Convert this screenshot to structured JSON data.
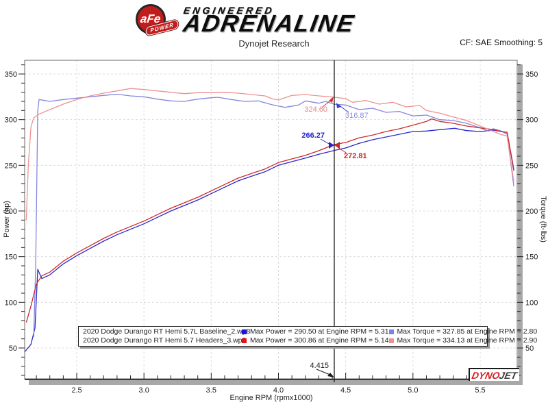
{
  "header": {
    "badge": {
      "afe": "aFe",
      "power": "POWER"
    },
    "engineered": "ENGINEERED",
    "adrenaline": "ADRENALINE",
    "subtitle": "Dynojet Research",
    "cf": "CF: SAE Smoothing: 5"
  },
  "watermark": {
    "dyno": "DYNO",
    "jet": "JET"
  },
  "chart_data": {
    "type": "line",
    "title": "Dynojet Research",
    "x_axis": {
      "label": "Engine RPM (rpmx1000)",
      "range": [
        2.11,
        5.78
      ],
      "major_ticks": [
        2.5,
        3.0,
        3.5,
        4.0,
        4.5,
        5.0,
        5.5
      ],
      "minor_step": 0.1
    },
    "y_left": {
      "label": "Power (hp)",
      "range": [
        16,
        365
      ],
      "major_ticks": [
        50,
        100,
        150,
        200,
        250,
        300,
        350
      ],
      "minor_step": 10
    },
    "y_right": {
      "label": "Torque (ft-lbs)",
      "range": [
        16,
        365
      ],
      "major_ticks": [
        50,
        100,
        150,
        200,
        250,
        300,
        350
      ],
      "minor_step": 10
    },
    "grid": true,
    "legend_position": "bottom",
    "cursor": {
      "rpm": 4.415,
      "label": "4.415"
    },
    "annotations": [
      {
        "text": "324.60",
        "series": "headers-torque",
        "color": "#e08585"
      },
      {
        "text": "316.87",
        "series": "baseline-torque",
        "color": "#8f8fdf"
      },
      {
        "text": "266.27",
        "series": "baseline-power",
        "color": "#2525cc"
      },
      {
        "text": "272.81",
        "series": "headers-power",
        "color": "#cc2525"
      }
    ],
    "series": [
      {
        "id": "baseline-power",
        "name": "2020 Dodge Durango RT Hemi 5.7L Baseline_2.wp8 Power",
        "color": "#2828cc",
        "points": [
          [
            2.115,
            46
          ],
          [
            2.16,
            54
          ],
          [
            2.19,
            72
          ],
          [
            2.21,
            136
          ],
          [
            2.24,
            126
          ],
          [
            2.3,
            130
          ],
          [
            2.4,
            142
          ],
          [
            2.5,
            151
          ],
          [
            2.6,
            159
          ],
          [
            2.7,
            167
          ],
          [
            2.8,
            174
          ],
          [
            2.9,
            180
          ],
          [
            3.0,
            186
          ],
          [
            3.1,
            193
          ],
          [
            3.2,
            200
          ],
          [
            3.3,
            206
          ],
          [
            3.4,
            212
          ],
          [
            3.5,
            219
          ],
          [
            3.6,
            226
          ],
          [
            3.7,
            233
          ],
          [
            3.8,
            238
          ],
          [
            3.9,
            243
          ],
          [
            4.0,
            250
          ],
          [
            4.1,
            254
          ],
          [
            4.2,
            258
          ],
          [
            4.3,
            262
          ],
          [
            4.415,
            266.27
          ],
          [
            4.5,
            269
          ],
          [
            4.6,
            274
          ],
          [
            4.7,
            278
          ],
          [
            4.8,
            281
          ],
          [
            4.9,
            284
          ],
          [
            5.0,
            287
          ],
          [
            5.1,
            287.5
          ],
          [
            5.2,
            289
          ],
          [
            5.31,
            290.5
          ],
          [
            5.4,
            288
          ],
          [
            5.5,
            287
          ],
          [
            5.6,
            288.5
          ],
          [
            5.7,
            286
          ],
          [
            5.75,
            244
          ]
        ]
      },
      {
        "id": "baseline-torque",
        "name": "2020 Dodge Durango RT Hemi 5.7L Baseline_2.wp8 Torque",
        "color": "#8585de",
        "points": [
          [
            2.18,
            62
          ],
          [
            2.195,
            140
          ],
          [
            2.21,
            310
          ],
          [
            2.22,
            322
          ],
          [
            2.3,
            320
          ],
          [
            2.4,
            322
          ],
          [
            2.5,
            323.5
          ],
          [
            2.6,
            325
          ],
          [
            2.7,
            326.5
          ],
          [
            2.8,
            327.85
          ],
          [
            2.9,
            326
          ],
          [
            3.0,
            325
          ],
          [
            3.1,
            322.5
          ],
          [
            3.2,
            320.5
          ],
          [
            3.3,
            320
          ],
          [
            3.4,
            322.5
          ],
          [
            3.5,
            324
          ],
          [
            3.55,
            324.5
          ],
          [
            3.65,
            322
          ],
          [
            3.75,
            320
          ],
          [
            3.85,
            320.5
          ],
          [
            3.95,
            316.5
          ],
          [
            4.05,
            313.5
          ],
          [
            4.15,
            316
          ],
          [
            4.2,
            320.5
          ],
          [
            4.3,
            318
          ],
          [
            4.35,
            320
          ],
          [
            4.415,
            316.87
          ],
          [
            4.5,
            316
          ],
          [
            4.6,
            311
          ],
          [
            4.7,
            312.5
          ],
          [
            4.8,
            308
          ],
          [
            4.9,
            309
          ],
          [
            5.0,
            304
          ],
          [
            5.1,
            305
          ],
          [
            5.2,
            300
          ],
          [
            5.3,
            299
          ],
          [
            5.4,
            296
          ],
          [
            5.5,
            291
          ],
          [
            5.55,
            288
          ],
          [
            5.6,
            290
          ],
          [
            5.65,
            288
          ],
          [
            5.7,
            284
          ],
          [
            5.75,
            227
          ]
        ]
      },
      {
        "id": "headers-power",
        "name": "2020 Dodge Durango RT Hemi 5.7 Headers_3.wp8 Power",
        "color": "#cc2828",
        "points": [
          [
            2.125,
            78
          ],
          [
            2.16,
            96
          ],
          [
            2.2,
            120
          ],
          [
            2.24,
            129
          ],
          [
            2.3,
            133
          ],
          [
            2.4,
            145
          ],
          [
            2.5,
            154
          ],
          [
            2.6,
            162
          ],
          [
            2.7,
            170
          ],
          [
            2.8,
            177
          ],
          [
            2.9,
            183
          ],
          [
            3.0,
            189
          ],
          [
            3.1,
            196
          ],
          [
            3.2,
            203
          ],
          [
            3.3,
            209
          ],
          [
            3.4,
            215
          ],
          [
            3.5,
            222
          ],
          [
            3.6,
            229
          ],
          [
            3.7,
            236
          ],
          [
            3.8,
            241
          ],
          [
            3.9,
            246
          ],
          [
            4.0,
            253
          ],
          [
            4.1,
            257
          ],
          [
            4.2,
            261
          ],
          [
            4.3,
            266
          ],
          [
            4.415,
            272.81
          ],
          [
            4.5,
            275
          ],
          [
            4.6,
            280
          ],
          [
            4.7,
            283
          ],
          [
            4.8,
            287
          ],
          [
            4.9,
            290
          ],
          [
            5.0,
            294
          ],
          [
            5.1,
            298
          ],
          [
            5.14,
            300.86
          ],
          [
            5.2,
            298
          ],
          [
            5.3,
            296
          ],
          [
            5.4,
            293
          ],
          [
            5.5,
            291
          ],
          [
            5.6,
            289
          ],
          [
            5.65,
            287
          ],
          [
            5.7,
            286
          ],
          [
            5.75,
            246
          ]
        ]
      },
      {
        "id": "headers-torque",
        "name": "2020 Dodge Durango RT Hemi 5.7 Headers_3.wp8 Torque",
        "color": "#ef9090",
        "points": [
          [
            2.125,
            190
          ],
          [
            2.14,
            250
          ],
          [
            2.16,
            292
          ],
          [
            2.18,
            302
          ],
          [
            2.22,
            306
          ],
          [
            2.3,
            311
          ],
          [
            2.4,
            317
          ],
          [
            2.5,
            322
          ],
          [
            2.6,
            326
          ],
          [
            2.7,
            329
          ],
          [
            2.8,
            331.5
          ],
          [
            2.9,
            334.13
          ],
          [
            3.0,
            333
          ],
          [
            3.1,
            331.5
          ],
          [
            3.2,
            330
          ],
          [
            3.3,
            328.5
          ],
          [
            3.4,
            329.5
          ],
          [
            3.5,
            329.5
          ],
          [
            3.6,
            330
          ],
          [
            3.7,
            329
          ],
          [
            3.8,
            327.5
          ],
          [
            3.9,
            326
          ],
          [
            3.95,
            323
          ],
          [
            4.0,
            321.5
          ],
          [
            4.1,
            326.5
          ],
          [
            4.2,
            327.5
          ],
          [
            4.3,
            326
          ],
          [
            4.415,
            324.6
          ],
          [
            4.5,
            323
          ],
          [
            4.55,
            319
          ],
          [
            4.65,
            321
          ],
          [
            4.75,
            317
          ],
          [
            4.85,
            319
          ],
          [
            4.95,
            314
          ],
          [
            5.05,
            315.5
          ],
          [
            5.1,
            310
          ],
          [
            5.2,
            307
          ],
          [
            5.3,
            303
          ],
          [
            5.4,
            299
          ],
          [
            5.5,
            293
          ],
          [
            5.6,
            287
          ],
          [
            5.65,
            284
          ],
          [
            5.7,
            282
          ],
          [
            5.75,
            232
          ]
        ]
      }
    ],
    "legend": {
      "rows": [
        {
          "file": "2020 Dodge Durango RT Hemi 5.7L Baseline_2.wp8",
          "power_marker": "#1616e0",
          "power": "Max Power = 290.50 at Engine RPM = 5.31",
          "torque_marker": "#8080e0",
          "torque": "Max Torque = 327.85 at Engine RPM = 2.80"
        },
        {
          "file": "2020 Dodge Durango RT Hemi 5.7 Headers_3.wp8",
          "power_marker": "#e01616",
          "power": "Max Power = 300.86 at Engine RPM = 5.14",
          "torque_marker": "#ef8f8f",
          "torque": "Max Torque = 334.13 at Engine RPM = 2.90"
        }
      ]
    },
    "max_values": {
      "baseline": {
        "max_power": 290.5,
        "max_power_rpm": 5.31,
        "max_torque": 327.85,
        "max_torque_rpm": 2.8
      },
      "headers": {
        "max_power": 300.86,
        "max_power_rpm": 5.14,
        "max_torque": 334.13,
        "max_torque_rpm": 2.9
      }
    },
    "cursor_readout": {
      "rpm": 4.415,
      "baseline_power": 266.27,
      "headers_power": 272.81,
      "baseline_torque": 316.87,
      "headers_torque": 324.6
    }
  }
}
